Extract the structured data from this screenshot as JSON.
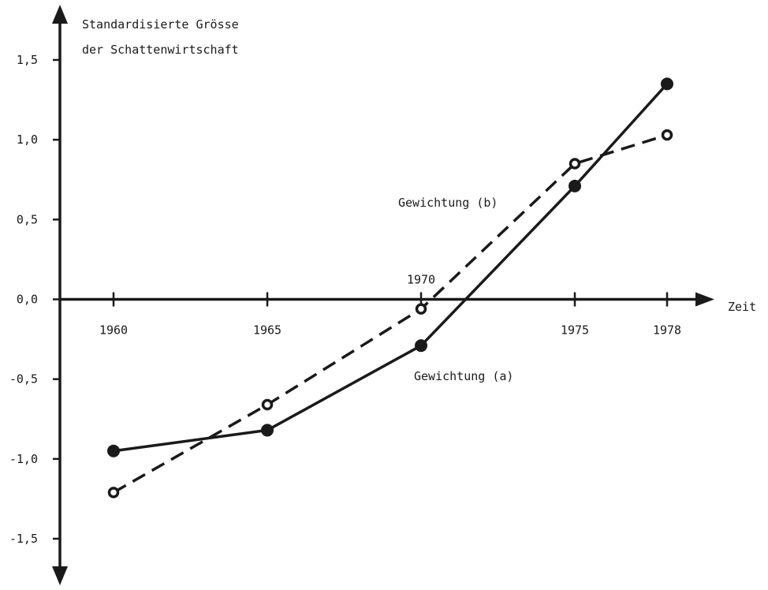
{
  "chart_data": {
    "type": "line",
    "y_title_lines": [
      "Standardisierte Grösse",
      "der Schattenwirtschaft"
    ],
    "xlabel": "Zeit",
    "x_ticks": [
      {
        "value": 1960,
        "label": "1960",
        "position": "below"
      },
      {
        "value": 1965,
        "label": "1965",
        "position": "below"
      },
      {
        "value": 1970,
        "label": "1970",
        "position": "above"
      },
      {
        "value": 1975,
        "label": "1975",
        "position": "below"
      },
      {
        "value": 1978,
        "label": "1978",
        "position": "below"
      }
    ],
    "y_ticks": [
      {
        "value": 1.5,
        "label": "1,5"
      },
      {
        "value": 1.0,
        "label": "1,0"
      },
      {
        "value": 0.5,
        "label": "0,5"
      },
      {
        "value": 0.0,
        "label": "0,0"
      },
      {
        "value": -0.5,
        "label": "-0,5"
      },
      {
        "value": -1.0,
        "label": "-1,0"
      },
      {
        "value": -1.5,
        "label": "-1,5"
      }
    ],
    "xlim": [
      1959,
      1979.5
    ],
    "ylim": [
      -1.8,
      1.85
    ],
    "grid": false,
    "series": [
      {
        "name": "Gewichtung (a)",
        "line_style": "solid",
        "marker": "filled",
        "x": [
          1960,
          1965,
          1970,
          1975,
          1978
        ],
        "values": [
          -0.95,
          -0.82,
          -0.29,
          0.71,
          1.35
        ]
      },
      {
        "name": "Gewichtung (b)",
        "line_style": "dashed",
        "marker": "open",
        "x": [
          1960,
          1965,
          1970,
          1975,
          1978
        ],
        "values": [
          -1.21,
          -0.66,
          -0.06,
          0.85,
          1.03
        ]
      }
    ]
  }
}
